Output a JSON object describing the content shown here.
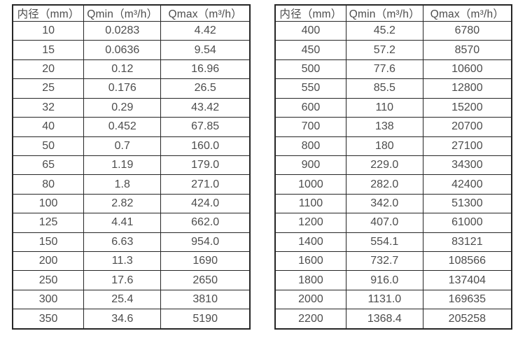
{
  "page": {
    "background_color": "#ffffff",
    "text_color": "#4d4d4d",
    "border_color": "#262626"
  },
  "tables": [
    {
      "name": "flow-spec-table-small-diameters",
      "headers": [
        "内径（mm）",
        "Qmin（m³/h）",
        "Qmax（m³/h）"
      ],
      "rows": [
        [
          "10",
          "0.0283",
          "4.42"
        ],
        [
          "15",
          "0.0636",
          "9.54"
        ],
        [
          "20",
          "0.12",
          "16.96"
        ],
        [
          "25",
          "0.176",
          "26.5"
        ],
        [
          "32",
          "0.29",
          "43.42"
        ],
        [
          "40",
          "0.452",
          "67.85"
        ],
        [
          "50",
          "0.7",
          "160.0"
        ],
        [
          "65",
          "1.19",
          "179.0"
        ],
        [
          "80",
          "1.8",
          "271.0"
        ],
        [
          "100",
          "2.82",
          "424.0"
        ],
        [
          "125",
          "4.41",
          "662.0"
        ],
        [
          "150",
          "6.63",
          "954.0"
        ],
        [
          "200",
          "11.3",
          "1690"
        ],
        [
          "250",
          "17.6",
          "2650"
        ],
        [
          "300",
          "25.4",
          "3810"
        ],
        [
          "350",
          "34.6",
          "5190"
        ]
      ]
    },
    {
      "name": "flow-spec-table-large-diameters",
      "headers": [
        "内径（mm）",
        "Qmin（m³/h）",
        "Qmax（m³/h）"
      ],
      "rows": [
        [
          "400",
          "45.2",
          "6780"
        ],
        [
          "450",
          "57.2",
          "8570"
        ],
        [
          "500",
          "77.6",
          "10600"
        ],
        [
          "550",
          "85.5",
          "12800"
        ],
        [
          "600",
          "110",
          "15200"
        ],
        [
          "700",
          "138",
          "20700"
        ],
        [
          "800",
          "180",
          "27100"
        ],
        [
          "900",
          "229.0",
          "34300"
        ],
        [
          "1000",
          "282.0",
          "42400"
        ],
        [
          "1100",
          "342.0",
          "51300"
        ],
        [
          "1200",
          "407.0",
          "61000"
        ],
        [
          "1400",
          "554.1",
          "83121"
        ],
        [
          "1600",
          "732.7",
          "108566"
        ],
        [
          "1800",
          "916.0",
          "137404"
        ],
        [
          "2000",
          "1131.0",
          "169635"
        ],
        [
          "2200",
          "1368.4",
          "205258"
        ]
      ]
    }
  ]
}
